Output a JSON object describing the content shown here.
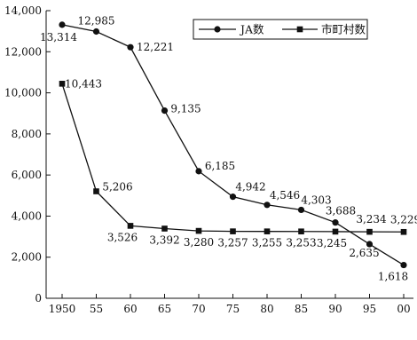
{
  "chart_data": {
    "type": "line",
    "title": "",
    "xlabel": "",
    "ylabel": "",
    "categories": [
      "1950",
      "55",
      "60",
      "65",
      "70",
      "75",
      "80",
      "85",
      "90",
      "95",
      "00"
    ],
    "ylim": [
      0,
      14000
    ],
    "yticks": [
      0,
      2000,
      4000,
      6000,
      8000,
      10000,
      12000,
      14000
    ],
    "ytick_labels": [
      "0",
      "2,000",
      "4,000",
      "6,000",
      "8,000",
      "10,000",
      "12,000",
      "14,000"
    ],
    "grid": false,
    "legend_position": "top-right",
    "series": [
      {
        "name": "JA数",
        "marker": "circle",
        "values": [
          13314,
          12985,
          12221,
          9135,
          6185,
          4942,
          4546,
          4303,
          3688,
          2635,
          1618
        ],
        "labels": [
          "13,314",
          "12,985",
          "12,221",
          "9,135",
          "6,185",
          "4,942",
          "4,546",
          "4,303",
          "3,688",
          "2,635",
          "1,618"
        ]
      },
      {
        "name": "市町村数",
        "marker": "square",
        "values": [
          10443,
          5206,
          3526,
          3392,
          3280,
          3257,
          3255,
          3253,
          3245,
          3234,
          3229
        ],
        "labels": [
          "10,443",
          "5,206",
          "3,526",
          "3,392",
          "3,280",
          "3,257",
          "3,255",
          "3,253",
          "3,245",
          "3,234",
          "3,229"
        ]
      }
    ],
    "line_color": "#111111"
  }
}
